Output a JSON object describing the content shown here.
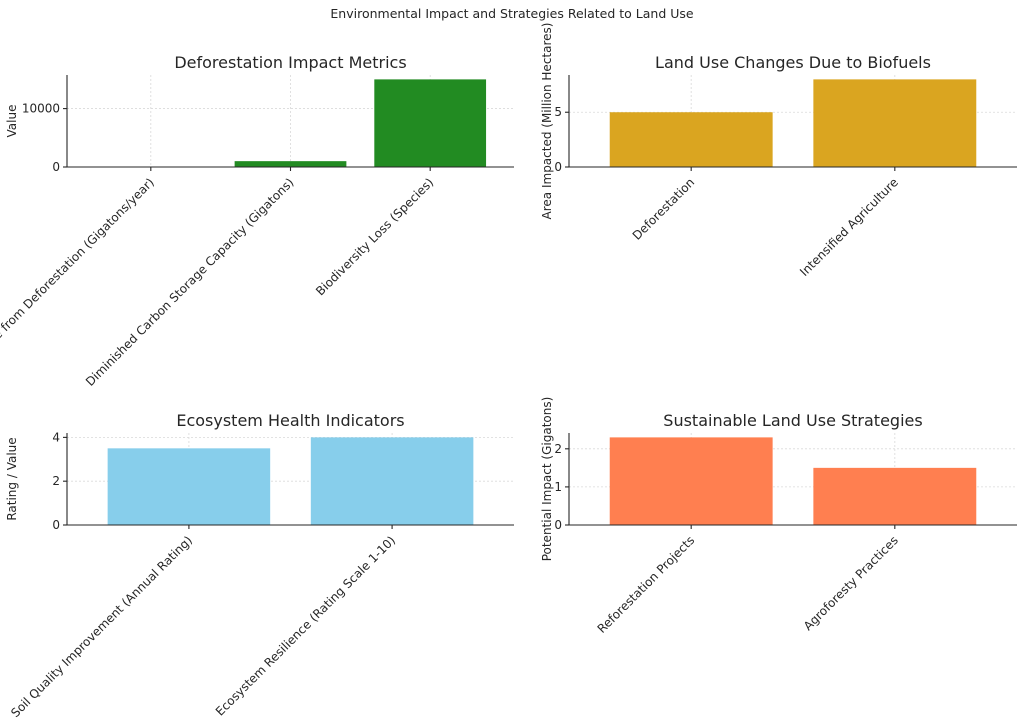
{
  "figure": {
    "title": "Environmental Impact and Strategies Related to Land Use"
  },
  "chart_data": [
    {
      "type": "bar",
      "title": "Deforestation Impact Metrics",
      "xlabel": "",
      "ylabel": "Value",
      "categories": [
        "Carbon Release from Deforestation (Gigatons/year)",
        "Diminished Carbon Storage Capacity (Gigatons)",
        "Biodiversity Loss (Species)"
      ],
      "values": [
        5,
        1000,
        15000
      ],
      "ylim": [
        0,
        15750
      ],
      "yticks": [
        0,
        10000
      ],
      "color": "#228b22",
      "grid": true,
      "label_rotation": 45
    },
    {
      "type": "bar",
      "title": "Land Use Changes Due to Biofuels",
      "xlabel": "",
      "ylabel": "Area Impacted (Million Hectares)",
      "categories": [
        "Deforestation",
        "Intensified Agriculture"
      ],
      "values": [
        5,
        8
      ],
      "ylim": [
        0,
        8.4
      ],
      "yticks": [
        0,
        5
      ],
      "color": "#daa520",
      "grid": true,
      "label_rotation": 45
    },
    {
      "type": "bar",
      "title": "Ecosystem Health Indicators",
      "xlabel": "",
      "ylabel": "Rating / Value",
      "categories": [
        "Soil Quality Improvement (Annual Rating)",
        "Ecosystem Resilience (Rating Scale 1-10)"
      ],
      "values": [
        3.5,
        4
      ],
      "ylim": [
        0,
        4.2
      ],
      "yticks": [
        0,
        2,
        4
      ],
      "color": "#87ceeb",
      "grid": true,
      "label_rotation": 45
    },
    {
      "type": "bar",
      "title": "Sustainable Land Use Strategies",
      "xlabel": "",
      "ylabel": "Potential Impact (Gigatons)",
      "categories": [
        "Reforestation Projects",
        "Agroforesty Practices"
      ],
      "values": [
        2.3,
        1.5
      ],
      "ylim": [
        0,
        2.415
      ],
      "yticks": [
        0,
        1,
        2
      ],
      "color": "#ff7f50",
      "grid": true,
      "label_rotation": 45
    }
  ]
}
